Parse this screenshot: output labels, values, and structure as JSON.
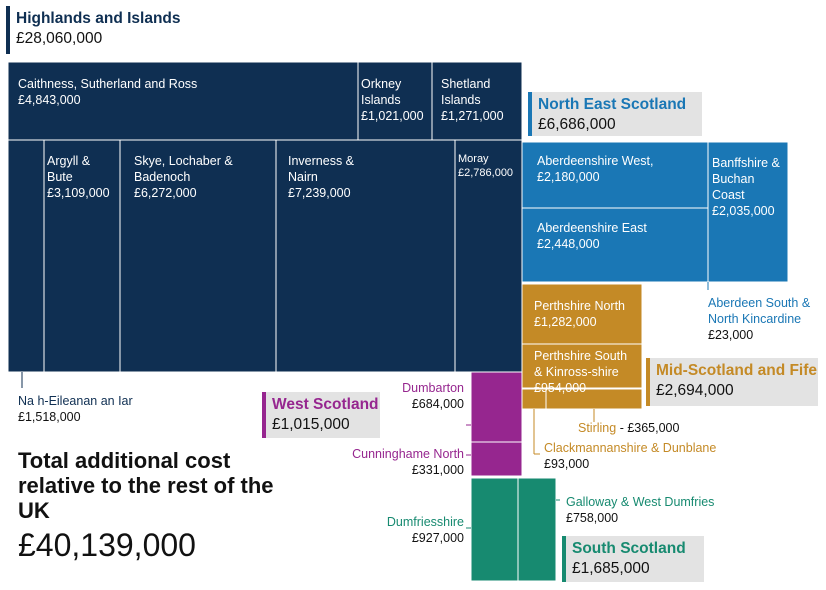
{
  "chart_data": {
    "type": "treemap",
    "title": "Total additional cost relative to the rest of the UK",
    "total_value": "£40,139,000",
    "regions": [
      {
        "name": "Highlands and Islands",
        "total": "£28,060,000",
        "color": "#0f2f52",
        "constituencies": [
          {
            "name": "Caithness, Sutherland and Ross",
            "label": "Caithness, Sutherland and Ross",
            "value": 4843000,
            "value_label": "£4,843,000"
          },
          {
            "name": "Orkney Islands",
            "label": "Orkney\nIslands",
            "value": 1021000,
            "value_label": "£1,021,000"
          },
          {
            "name": "Shetland Islands",
            "label": "Shetland\nIslands",
            "value": 1271000,
            "value_label": "£1,271,000"
          },
          {
            "name": "Na h-Eileanan an Iar",
            "label": "Na h-Eileanan an Iar",
            "value": 1518000,
            "value_label": "£1,518,000"
          },
          {
            "name": "Argyll & Bute",
            "label": "Argyll &\nBute",
            "value": 3109000,
            "value_label": "£3,109,000"
          },
          {
            "name": "Skye, Lochaber & Badenoch",
            "label": "Skye, Lochaber &\nBadenoch",
            "value": 6272000,
            "value_label": "£6,272,000"
          },
          {
            "name": "Inverness & Nairn",
            "label": "Inverness &\nNairn",
            "value": 7239000,
            "value_label": "£7,239,000"
          },
          {
            "name": "Moray",
            "label": "Moray",
            "value": 2786000,
            "value_label": "£2,786,000"
          }
        ]
      },
      {
        "name": "North East Scotland",
        "total": "£6,686,000",
        "color": "#1a77b5",
        "constituencies": [
          {
            "name": "Aberdeenshire West",
            "label": "Aberdeenshire West,",
            "value": 2180000,
            "value_label": "£2,180,000"
          },
          {
            "name": "Aberdeenshire East",
            "label": "Aberdeenshire East",
            "value": 2448000,
            "value_label": "£2,448,000"
          },
          {
            "name": "Banffshire & Buchan Coast",
            "label": "Banffshire &\nBuchan\nCoast",
            "value": 2035000,
            "value_label": "£2,035,000"
          },
          {
            "name": "Aberdeen South & North Kincardine",
            "label": "Aberdeen South &\nNorth Kincardine",
            "value": 23000,
            "value_label": "£23,000"
          }
        ]
      },
      {
        "name": "Mid-Scotland and Fife",
        "total": "£2,694,000",
        "color": "#c48a26",
        "constituencies": [
          {
            "name": "Perthshire North",
            "label": "Perthshire North",
            "value": 1282000,
            "value_label": "£1,282,000"
          },
          {
            "name": "Perthshire South & Kinross-shire",
            "label": "Perthshire South\n& Kinross-shire",
            "value": 954000,
            "value_label": "£954,000"
          },
          {
            "name": "Stirling",
            "label": "Stirling",
            "value": 365000,
            "value_label": "£365,000"
          },
          {
            "name": "Clackmannanshire & Dunblane",
            "label": "Clackmannanshire & Dunblane",
            "value": 93000,
            "value_label": "£93,000"
          }
        ]
      },
      {
        "name": "West Scotland",
        "total": "£1,015,000",
        "color": "#96268f",
        "constituencies": [
          {
            "name": "Dumbarton",
            "label": "Dumbarton",
            "value": 684000,
            "value_label": "£684,000"
          },
          {
            "name": "Cunninghame North",
            "label": "Cunninghame North",
            "value": 331000,
            "value_label": "£331,000"
          }
        ]
      },
      {
        "name": "South Scotland",
        "total": "£1,685,000",
        "color": "#178a70",
        "constituencies": [
          {
            "name": "Dumfriesshire",
            "label": "Dumfriesshire",
            "value": 927000,
            "value_label": "£927,000"
          },
          {
            "name": "Galloway & West Dumfries",
            "label": "Galloway & West Dumfries",
            "value": 758000,
            "value_label": "£758,000"
          }
        ]
      }
    ]
  }
}
